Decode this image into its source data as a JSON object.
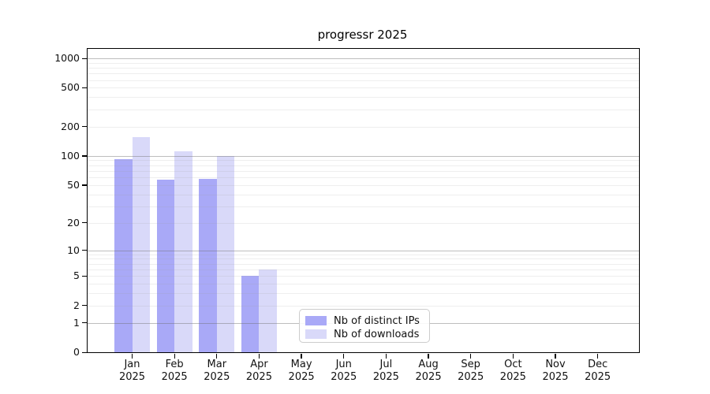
{
  "title": "progressr 2025",
  "chart_data": {
    "type": "bar",
    "categories": [
      "Jan",
      "Feb",
      "Mar",
      "Apr",
      "May",
      "Jun",
      "Jul",
      "Aug",
      "Sep",
      "Oct",
      "Nov",
      "Dec"
    ],
    "year_label": "2025",
    "series": [
      {
        "name": "Nb of distinct IPs",
        "color": "#a9a9f7",
        "values": [
          93,
          57,
          58,
          5,
          0,
          0,
          0,
          0,
          0,
          0,
          0,
          0
        ]
      },
      {
        "name": "Nb of downloads",
        "color": "#d9d9f9",
        "values": [
          156,
          112,
          100,
          6,
          0,
          0,
          0,
          0,
          0,
          0,
          0,
          0
        ]
      }
    ],
    "yscale": "log1p",
    "yticks": [
      0,
      1,
      2,
      5,
      10,
      20,
      50,
      100,
      200,
      500,
      1000
    ],
    "ylim": [
      0,
      1100
    ],
    "grid": true,
    "legend_position": "lower-center",
    "xlabel": "",
    "ylabel": ""
  },
  "colors": {
    "background": "#ffffff",
    "axis": "#000000",
    "bar_distinct_ips": "#a9a9f7",
    "bar_downloads": "#d9d9f9",
    "grid_major": "#9e9e9e",
    "grid_minor": "#e8e8e8",
    "legend_border": "#cccccc",
    "text": "#111111"
  }
}
